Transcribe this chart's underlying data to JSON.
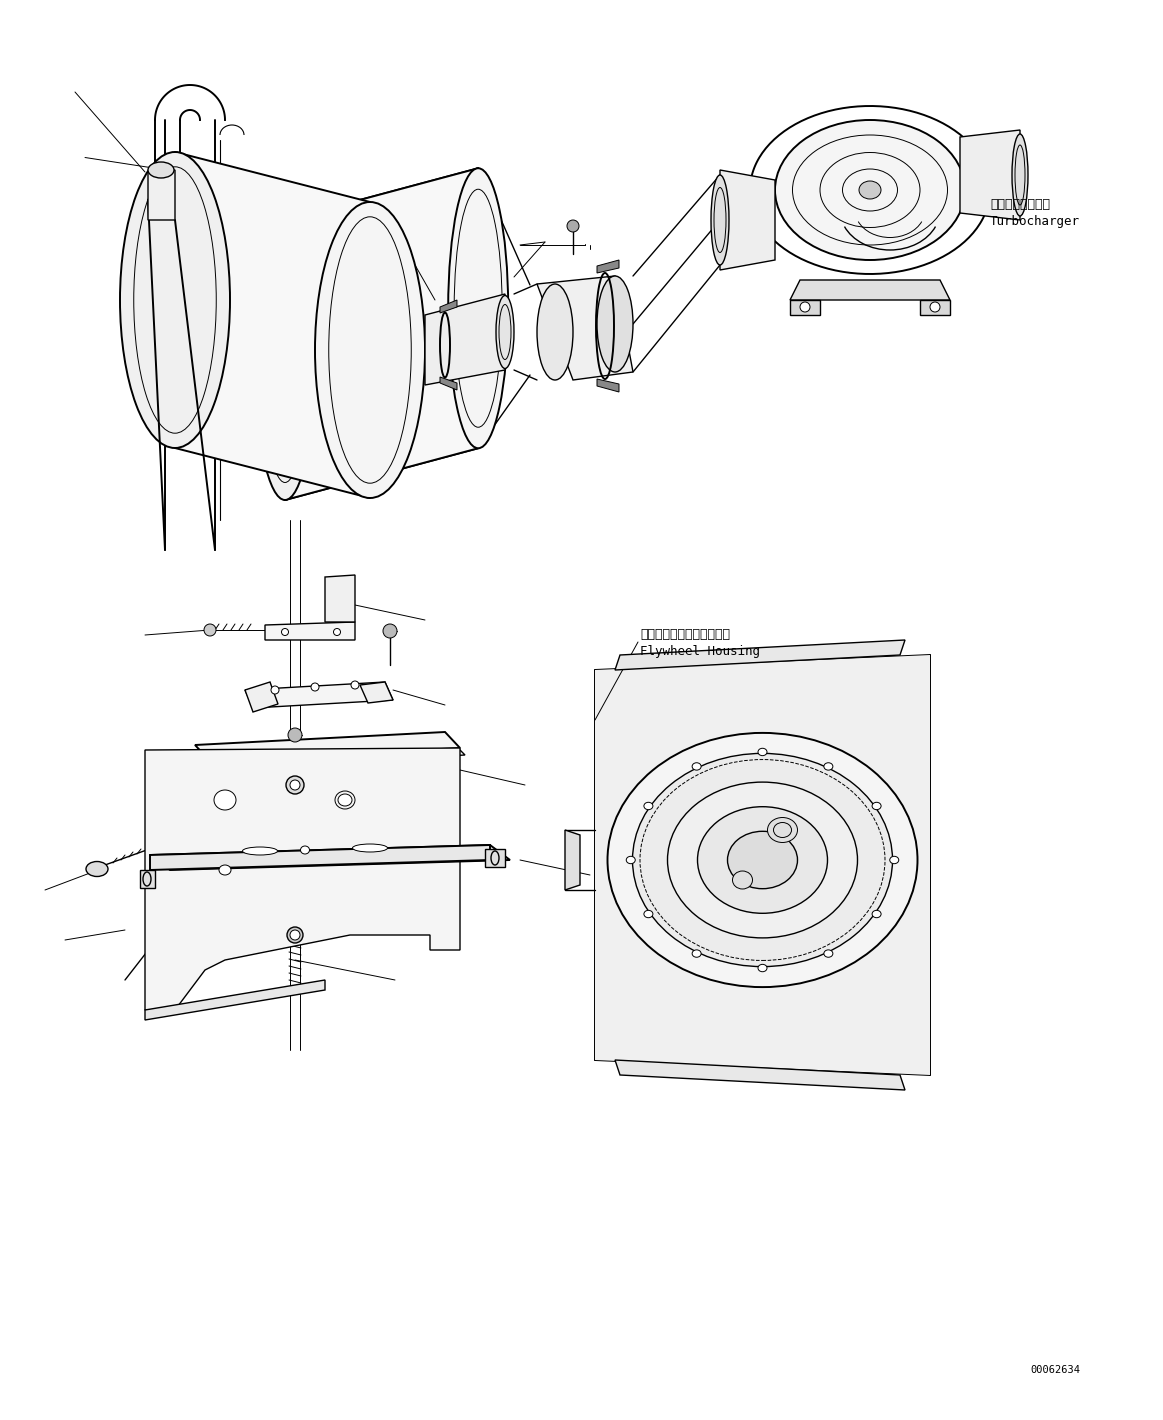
{
  "background_color": "#ffffff",
  "line_color": "#000000",
  "figure_width": 11.63,
  "figure_height": 14.2,
  "dpi": 100,
  "turbocharger_label_jp": "ターボチャージャ",
  "turbocharger_label_en": "Turbocharger",
  "flywheel_label_jp": "フライホイールハウジング",
  "flywheel_label_en": "Flywheel Housing",
  "doc_number": "00062634",
  "font_size_label": 9,
  "font_size_doc": 7.5,
  "lw_thin": 0.7,
  "lw_med": 1.0,
  "lw_thick": 1.4
}
